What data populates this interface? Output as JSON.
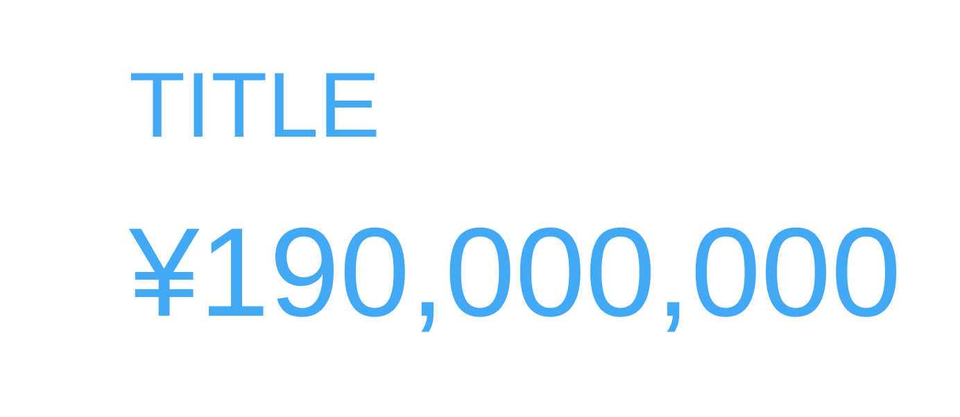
{
  "card": {
    "title": "TITLE",
    "value": "¥190,000,000"
  },
  "colors": {
    "accent": "#42a9f6",
    "background": "#ffffff"
  }
}
